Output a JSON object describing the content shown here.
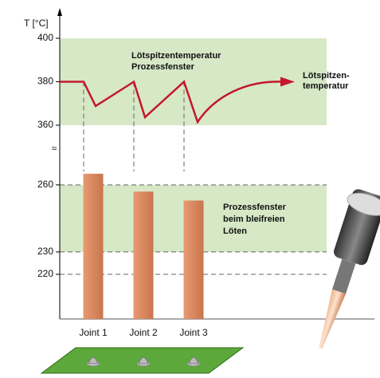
{
  "chart_data": {
    "type": "bar",
    "y_axis_label": "T [°C]",
    "axis_break": "≈",
    "categories": [
      "Joint 1",
      "Joint 2",
      "Joint 3"
    ],
    "values": [
      265,
      257,
      253
    ],
    "color": "#dc8a62",
    "ylim": [
      200,
      276
    ],
    "yticks": [
      220,
      230,
      260
    ],
    "band": [
      230,
      260
    ],
    "upper_ylim": [
      360,
      400
    ],
    "upper_yticks": [
      360,
      380,
      400
    ],
    "upper_band": [
      360,
      400
    ],
    "band_color": "#d6e8c6",
    "line_color": "#c4172c",
    "upper_annotation": [
      "Lötspitzentemperatur",
      "Prozessfenster"
    ],
    "line_annotation": [
      "Lötspitzen-",
      "temperatur"
    ],
    "lower_annotation": [
      "Prozessfenster",
      "beim bleifreien",
      "Löten"
    ]
  }
}
